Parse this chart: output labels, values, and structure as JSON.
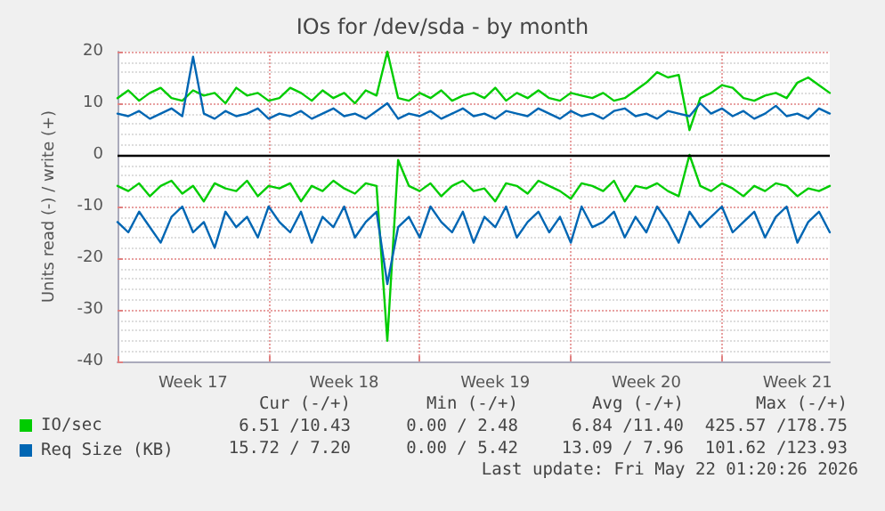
{
  "chart_data": {
    "type": "line",
    "title": "IOs for /dev/sda - by month",
    "ylabel": "Units read (-) / write (+)",
    "categories": [
      null,
      null,
      null,
      null,
      null,
      null,
      null,
      "Week 17",
      null,
      null,
      null,
      null,
      null,
      null,
      null,
      null,
      null,
      null,
      null,
      null,
      null,
      "Week 18",
      null,
      null,
      null,
      null,
      null,
      null,
      null,
      null,
      null,
      null,
      null,
      null,
      null,
      "Week 19",
      null,
      null,
      null,
      null,
      null,
      null,
      null,
      null,
      null,
      null,
      null,
      null,
      null,
      "Week 20",
      null,
      null,
      null,
      null,
      null,
      null,
      null,
      null,
      null,
      null,
      null,
      null,
      null,
      "Week 21",
      null,
      null,
      null
    ],
    "ylim": [
      -40,
      20
    ],
    "yticks": [
      -40,
      -30,
      -20,
      -10,
      0,
      10,
      20
    ],
    "grid": true,
    "legend": "bottom",
    "marker": "none",
    "line_style": "solid",
    "ref_lines": [
      {
        "axis": "y",
        "value": 0,
        "color": "#000000"
      }
    ],
    "series": [
      {
        "color": "#00cc00",
        "values": [
          -6,
          -7,
          -5.5,
          -8,
          -6,
          -5,
          -7.5,
          -6,
          -9,
          -5.5,
          -6.5,
          -7,
          -5,
          -8,
          -6,
          -6.5,
          -5.5,
          -9,
          -6,
          -7,
          -5,
          -6.5,
          -7.5,
          -5.5,
          -6,
          -36,
          -1,
          -6,
          -7,
          -5.5,
          -8,
          -6,
          -5,
          -7,
          -6.5,
          -9,
          -5.5,
          -6,
          -7.5,
          -5,
          -6,
          -7,
          -8.5,
          -5.5,
          -6,
          -7,
          -5,
          -9,
          -6,
          -6.5,
          -5.5,
          -7,
          -8,
          0,
          -6,
          -7,
          -5.5,
          -6.5,
          -8,
          -6,
          -7,
          -5.5,
          -6,
          -8,
          -6.5,
          -7,
          -6
        ]
      },
      {
        "name": "IO/sec",
        "color": "#00cc00",
        "values": [
          11,
          12.5,
          10.5,
          12,
          13,
          11,
          10.5,
          12.5,
          11.5,
          12,
          10,
          13,
          11.5,
          12,
          10.5,
          11,
          13,
          12,
          10.5,
          12.5,
          11,
          12,
          10,
          12.5,
          11.5,
          20,
          11,
          10.5,
          12,
          11,
          12.5,
          10.5,
          11.5,
          12,
          11,
          13,
          10.5,
          12,
          11,
          12.5,
          11,
          10.5,
          12,
          11.5,
          11,
          12,
          10.5,
          11,
          12.5,
          14,
          16,
          15,
          15.5,
          4.8,
          11,
          12,
          13.5,
          13,
          11,
          10.5,
          11.5,
          12,
          11,
          14,
          15,
          13.5,
          12
        ]
      },
      {
        "color": "#0066b3",
        "values": [
          -13,
          -15,
          -11,
          -14,
          -17,
          -12,
          -10,
          -15,
          -13,
          -18,
          -11,
          -14,
          -12,
          -16,
          -10,
          -13,
          -15,
          -11,
          -17,
          -12,
          -14,
          -10,
          -16,
          -13,
          -11,
          -25,
          -14,
          -12,
          -16,
          -10,
          -13,
          -15,
          -11,
          -17,
          -12,
          -14,
          -10,
          -16,
          -13,
          -11,
          -15,
          -12,
          -17,
          -10,
          -14,
          -13,
          -11,
          -16,
          -12,
          -15,
          -10,
          -13,
          -17,
          -11,
          -14,
          -12,
          -10,
          -15,
          -13,
          -11,
          -16,
          -12,
          -10,
          -17,
          -13,
          -11,
          -15
        ]
      },
      {
        "name": "Req Size (KB)",
        "color": "#0066b3",
        "values": [
          8,
          7.5,
          8.5,
          7,
          8,
          9,
          7.5,
          19,
          8,
          7,
          8.5,
          7.5,
          8,
          9,
          7,
          8,
          7.5,
          8.5,
          7,
          8,
          9,
          7.5,
          8,
          7,
          8.5,
          10,
          7,
          8,
          7.5,
          8.5,
          7,
          8,
          9,
          7.5,
          8,
          7,
          8.5,
          8,
          7.5,
          9,
          8,
          7,
          8.5,
          7.5,
          8,
          7,
          8.5,
          9,
          7.5,
          8,
          7,
          8.5,
          8,
          7.5,
          10,
          8,
          9,
          7.5,
          8.5,
          7,
          8,
          9.5,
          7.5,
          8,
          7,
          9,
          8
        ]
      }
    ],
    "annotations": [
      "Cur (-/+)",
      "Min (-/+)",
      "Avg (-/+)",
      "Max (-/+)",
      "6.51 /10.43",
      "0.00 / 2.48",
      "6.84 /11.40",
      "425.57 /178.75",
      "15.72 / 7.20",
      "0.00 / 5.42",
      "13.09 / 7.96",
      "101.62 /123.93",
      "Last update: Fri May 22 01:20:26 2026"
    ]
  }
}
